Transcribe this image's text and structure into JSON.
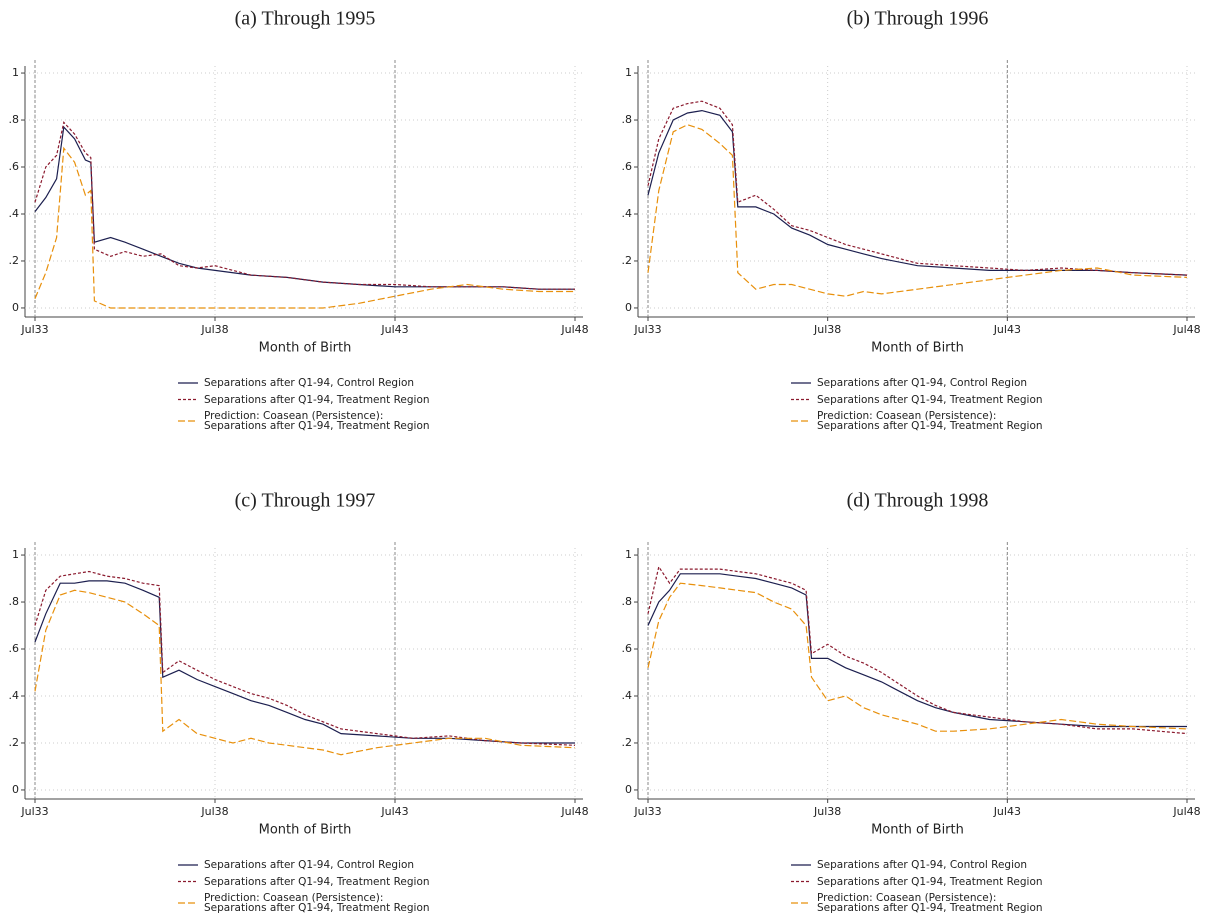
{
  "chart_data": [
    {
      "type": "line",
      "title": "(a) Through 1995",
      "x_label": "Month of Birth",
      "x": [
        1933.5,
        1933.8,
        1934.1,
        1934.3,
        1934.6,
        1934.9,
        1935.05,
        1935.15,
        1935.6,
        1936,
        1936.5,
        1937,
        1937.5,
        1938,
        1938.5,
        1939.5,
        1940.5,
        1941.5,
        1942.5,
        1943.5,
        1944.5,
        1945.5,
        1946.5,
        1947.5,
        1948.5
      ],
      "series": [
        {
          "name": "Separations after Q1-94, Control Region",
          "color": "#1c1f4f",
          "values": [
            0.41,
            0.47,
            0.55,
            0.77,
            0.72,
            0.63,
            0.62,
            0.28,
            0.3,
            0.28,
            0.25,
            0.22,
            0.19,
            0.17,
            0.16,
            0.14,
            0.13,
            0.11,
            0.1,
            0.09,
            0.09,
            0.09,
            0.09,
            0.08,
            0.08
          ]
        },
        {
          "name": "Separations after Q1-94, Treatment Region",
          "color": "#8b1a2e",
          "values": [
            0.45,
            0.6,
            0.65,
            0.79,
            0.74,
            0.66,
            0.64,
            0.25,
            0.22,
            0.24,
            0.22,
            0.23,
            0.18,
            0.17,
            0.18,
            0.14,
            0.13,
            0.11,
            0.1,
            0.1,
            0.09,
            0.09,
            0.09,
            0.08,
            0.08
          ]
        },
        {
          "name": "Prediction: Coasean (Persistence):\nSeparations after Q1-94, Treatment Region",
          "color": "#e8900c",
          "values": [
            0.04,
            0.15,
            0.3,
            0.68,
            0.62,
            0.48,
            0.5,
            0.03,
            0,
            0,
            0,
            0,
            0,
            0,
            0,
            0,
            0,
            0,
            0.02,
            0.05,
            0.08,
            0.1,
            0.08,
            0.07,
            0.07
          ]
        }
      ],
      "xlim": [
        1933.5,
        1948.5
      ],
      "xticks": [
        {
          "value": 1933.5,
          "label": "Jul33"
        },
        {
          "value": 1938.5,
          "label": "Jul38"
        },
        {
          "value": 1943.5,
          "label": "Jul43"
        },
        {
          "value": 1948.5,
          "label": "Jul48"
        }
      ],
      "ylim": [
        -0.03,
        1.03
      ],
      "yticks": [
        0,
        {
          "value": 0.2,
          "label": ".2"
        },
        {
          "value": 0.4,
          "label": ".4"
        },
        {
          "value": 0.6,
          "label": ".6"
        },
        {
          "value": 0.8,
          "label": ".8"
        },
        1
      ],
      "vlines": [
        1933.5,
        1943.5
      ],
      "grid": true
    },
    {
      "type": "line",
      "title": "(b) Through 1996",
      "x_label": "Month of Birth",
      "x": [
        1933.5,
        1933.8,
        1934.2,
        1934.6,
        1935,
        1935.5,
        1935.85,
        1936.0,
        1936.5,
        1937,
        1937.5,
        1938,
        1938.5,
        1939,
        1939.5,
        1940,
        1941,
        1942,
        1943,
        1944,
        1945,
        1946,
        1947,
        1948.5
      ],
      "series": [
        {
          "name": "Separations after Q1-94, Control Region",
          "color": "#1c1f4f",
          "values": [
            0.48,
            0.66,
            0.8,
            0.83,
            0.84,
            0.82,
            0.75,
            0.43,
            0.43,
            0.4,
            0.34,
            0.31,
            0.27,
            0.25,
            0.23,
            0.21,
            0.18,
            0.17,
            0.16,
            0.16,
            0.16,
            0.16,
            0.15,
            0.14
          ]
        },
        {
          "name": "Separations after Q1-94, Treatment Region",
          "color": "#8b1a2e",
          "values": [
            0.52,
            0.72,
            0.85,
            0.87,
            0.88,
            0.85,
            0.78,
            0.45,
            0.48,
            0.42,
            0.35,
            0.33,
            0.3,
            0.27,
            0.25,
            0.23,
            0.19,
            0.18,
            0.17,
            0.16,
            0.17,
            0.16,
            0.15,
            0.14
          ]
        },
        {
          "name": "Prediction: Coasean (Persistence):\nSeparations after Q1-94, Treatment Region",
          "color": "#e8900c",
          "values": [
            0.15,
            0.5,
            0.75,
            0.78,
            0.76,
            0.7,
            0.65,
            0.15,
            0.08,
            0.1,
            0.1,
            0.08,
            0.06,
            0.05,
            0.07,
            0.06,
            0.08,
            0.1,
            0.12,
            0.14,
            0.16,
            0.17,
            0.14,
            0.13
          ]
        }
      ],
      "xlim": [
        1933.5,
        1948.5
      ],
      "xticks": [
        {
          "value": 1933.5,
          "label": "Jul33"
        },
        {
          "value": 1938.5,
          "label": "Jul38"
        },
        {
          "value": 1943.5,
          "label": "Jul43"
        },
        {
          "value": 1948.5,
          "label": "Jul48"
        }
      ],
      "ylim": [
        -0.03,
        1.03
      ],
      "yticks": [
        0,
        {
          "value": 0.2,
          "label": ".2"
        },
        {
          "value": 0.4,
          "label": ".4"
        },
        {
          "value": 0.6,
          "label": ".6"
        },
        {
          "value": 0.8,
          "label": ".8"
        },
        1
      ],
      "vlines": [
        1933.5,
        1943.5
      ],
      "grid": true
    },
    {
      "type": "line",
      "title": "(c) Through 1997",
      "x_label": "Month of Birth",
      "x": [
        1933.5,
        1933.8,
        1934.2,
        1934.6,
        1935,
        1935.5,
        1936,
        1936.5,
        1936.95,
        1937.05,
        1937.5,
        1938,
        1938.5,
        1939,
        1939.5,
        1940,
        1940.5,
        1941,
        1941.5,
        1942,
        1943,
        1944,
        1945,
        1946,
        1947,
        1948.5
      ],
      "series": [
        {
          "name": "Separations after Q1-94, Control Region",
          "color": "#1c1f4f",
          "values": [
            0.63,
            0.75,
            0.88,
            0.88,
            0.89,
            0.89,
            0.88,
            0.85,
            0.82,
            0.48,
            0.51,
            0.47,
            0.44,
            0.41,
            0.38,
            0.36,
            0.33,
            0.3,
            0.28,
            0.24,
            0.23,
            0.22,
            0.22,
            0.21,
            0.2,
            0.2
          ]
        },
        {
          "name": "Separations after Q1-94, Treatment Region",
          "color": "#8b1a2e",
          "values": [
            0.7,
            0.85,
            0.91,
            0.92,
            0.93,
            0.91,
            0.9,
            0.88,
            0.87,
            0.5,
            0.55,
            0.51,
            0.47,
            0.44,
            0.41,
            0.39,
            0.36,
            0.32,
            0.29,
            0.26,
            0.24,
            0.22,
            0.23,
            0.21,
            0.2,
            0.19
          ]
        },
        {
          "name": "Prediction: Coasean (Persistence):\nSeparations after Q1-94, Treatment Region",
          "color": "#e8900c",
          "values": [
            0.42,
            0.68,
            0.83,
            0.85,
            0.84,
            0.82,
            0.8,
            0.75,
            0.7,
            0.25,
            0.3,
            0.24,
            0.22,
            0.2,
            0.22,
            0.2,
            0.19,
            0.18,
            0.17,
            0.15,
            0.18,
            0.2,
            0.22,
            0.22,
            0.19,
            0.18
          ]
        }
      ],
      "xlim": [
        1933.5,
        1948.5
      ],
      "xticks": [
        {
          "value": 1933.5,
          "label": "Jul33"
        },
        {
          "value": 1938.5,
          "label": "Jul38"
        },
        {
          "value": 1943.5,
          "label": "Jul43"
        },
        {
          "value": 1948.5,
          "label": "Jul48"
        }
      ],
      "ylim": [
        -0.03,
        1.03
      ],
      "yticks": [
        0,
        {
          "value": 0.2,
          "label": ".2"
        },
        {
          "value": 0.4,
          "label": ".4"
        },
        {
          "value": 0.6,
          "label": ".6"
        },
        {
          "value": 0.8,
          "label": ".8"
        },
        1
      ],
      "vlines": [
        1933.5,
        1943.5
      ],
      "grid": true
    },
    {
      "type": "line",
      "title": "(d) Through 1998",
      "x_label": "Month of Birth",
      "x": [
        1933.5,
        1933.8,
        1934.1,
        1934.4,
        1935,
        1935.5,
        1936,
        1936.5,
        1937,
        1937.5,
        1937.9,
        1938.05,
        1938.5,
        1939,
        1939.5,
        1940,
        1940.5,
        1941,
        1941.5,
        1942,
        1943,
        1944,
        1945,
        1946,
        1947,
        1948.5
      ],
      "series": [
        {
          "name": "Separations after Q1-94, Control Region",
          "color": "#1c1f4f",
          "values": [
            0.7,
            0.8,
            0.85,
            0.92,
            0.92,
            0.92,
            0.91,
            0.9,
            0.88,
            0.86,
            0.83,
            0.56,
            0.56,
            0.52,
            0.49,
            0.46,
            0.42,
            0.38,
            0.35,
            0.33,
            0.3,
            0.29,
            0.28,
            0.27,
            0.27,
            0.27
          ]
        },
        {
          "name": "Separations after Q1-94, Treatment Region",
          "color": "#8b1a2e",
          "values": [
            0.75,
            0.95,
            0.88,
            0.94,
            0.94,
            0.94,
            0.93,
            0.92,
            0.9,
            0.88,
            0.85,
            0.58,
            0.62,
            0.57,
            0.54,
            0.5,
            0.45,
            0.4,
            0.36,
            0.33,
            0.31,
            0.29,
            0.28,
            0.26,
            0.26,
            0.24
          ]
        },
        {
          "name": "Prediction: Coasean (Persistence):\nSeparations after Q1-94, Treatment Region",
          "color": "#e8900c",
          "values": [
            0.52,
            0.72,
            0.82,
            0.88,
            0.87,
            0.86,
            0.85,
            0.84,
            0.8,
            0.77,
            0.7,
            0.48,
            0.38,
            0.4,
            0.35,
            0.32,
            0.3,
            0.28,
            0.25,
            0.25,
            0.26,
            0.28,
            0.3,
            0.28,
            0.27,
            0.26
          ]
        }
      ],
      "xlim": [
        1933.5,
        1948.5
      ],
      "xticks": [
        {
          "value": 1933.5,
          "label": "Jul33"
        },
        {
          "value": 1938.5,
          "label": "Jul38"
        },
        {
          "value": 1943.5,
          "label": "Jul43"
        },
        {
          "value": 1948.5,
          "label": "Jul48"
        }
      ],
      "ylim": [
        -0.03,
        1.03
      ],
      "yticks": [
        0,
        {
          "value": 0.2,
          "label": ".2"
        },
        {
          "value": 0.4,
          "label": ".4"
        },
        {
          "value": 0.6,
          "label": ".6"
        },
        {
          "value": 0.8,
          "label": ".8"
        },
        1
      ],
      "vlines": [
        1933.5,
        1943.5
      ],
      "grid": true
    }
  ]
}
